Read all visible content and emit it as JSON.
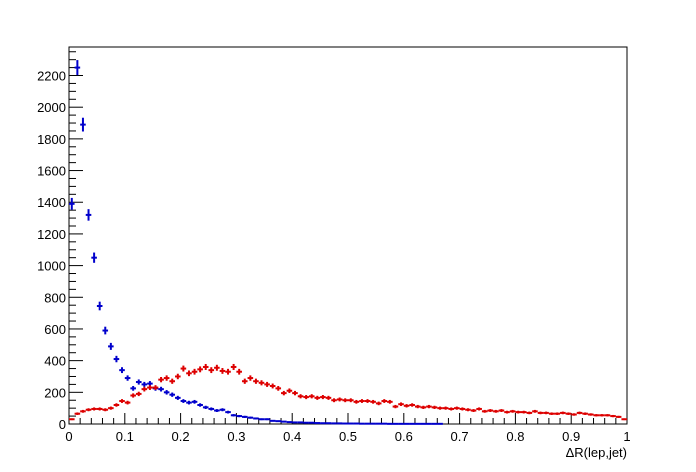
{
  "chart_data": {
    "type": "scatter",
    "title": "",
    "xlabel": "ΔR(lep,jet)",
    "ylabel": "",
    "xlim": [
      0,
      1
    ],
    "ylim": [
      0,
      2380
    ],
    "grid": false,
    "legend": "none",
    "x_ticks": [
      "0",
      "0.1",
      "0.2",
      "0.3",
      "0.4",
      "0.5",
      "0.6",
      "0.7",
      "0.8",
      "0.9",
      "1"
    ],
    "y_ticks": [
      "0",
      "200",
      "400",
      "600",
      "800",
      "1000",
      "1200",
      "1400",
      "1600",
      "1800",
      "2000",
      "2200"
    ],
    "bin_width": 0.01,
    "x": [
      0.005,
      0.015,
      0.025,
      0.035,
      0.045,
      0.055,
      0.065,
      0.075,
      0.085,
      0.095,
      0.105,
      0.115,
      0.125,
      0.135,
      0.145,
      0.155,
      0.165,
      0.175,
      0.185,
      0.195,
      0.205,
      0.215,
      0.225,
      0.235,
      0.245,
      0.255,
      0.265,
      0.275,
      0.285,
      0.295,
      0.305,
      0.315,
      0.325,
      0.335,
      0.345,
      0.355,
      0.365,
      0.375,
      0.385,
      0.395,
      0.405,
      0.415,
      0.425,
      0.435,
      0.445,
      0.455,
      0.465,
      0.475,
      0.485,
      0.495,
      0.505,
      0.515,
      0.525,
      0.535,
      0.545,
      0.555,
      0.565,
      0.575,
      0.585,
      0.595,
      0.605,
      0.615,
      0.625,
      0.635,
      0.645,
      0.655,
      0.665,
      0.675,
      0.685,
      0.695,
      0.705,
      0.715,
      0.725,
      0.735,
      0.745,
      0.755,
      0.765,
      0.775,
      0.785,
      0.795,
      0.805,
      0.815,
      0.825,
      0.835,
      0.845,
      0.855,
      0.865,
      0.875,
      0.885,
      0.895,
      0.905,
      0.915,
      0.925,
      0.935,
      0.945,
      0.955,
      0.965,
      0.975,
      0.985,
      0.995
    ],
    "series": [
      {
        "color": "#0000cc",
        "values": [
          1390,
          2250,
          1890,
          1320,
          1050,
          745,
          590,
          490,
          410,
          340,
          290,
          225,
          265,
          250,
          255,
          225,
          220,
          200,
          185,
          165,
          145,
          135,
          140,
          120,
          105,
          95,
          85,
          90,
          75,
          55,
          50,
          45,
          40,
          35,
          30,
          30,
          20,
          18,
          15,
          12,
          10,
          10,
          8,
          8,
          6,
          5,
          5,
          4,
          4,
          3,
          3,
          3,
          2,
          2,
          2,
          2,
          2,
          1,
          1,
          1,
          1,
          1,
          1,
          1,
          1,
          1,
          1,
          0,
          0,
          0,
          0,
          0,
          0,
          0,
          0,
          0,
          0,
          0,
          0,
          0,
          0,
          0,
          0,
          0,
          0,
          0,
          0,
          0,
          0,
          0,
          0,
          0,
          0,
          0,
          0,
          0,
          0,
          0,
          0,
          0
        ]
      },
      {
        "color": "#dd0000",
        "values": [
          30,
          65,
          80,
          90,
          95,
          95,
          90,
          100,
          120,
          145,
          135,
          180,
          190,
          220,
          230,
          230,
          280,
          290,
          270,
          300,
          350,
          320,
          330,
          345,
          360,
          340,
          355,
          335,
          330,
          360,
          330,
          270,
          290,
          270,
          260,
          250,
          240,
          225,
          195,
          210,
          195,
          175,
          170,
          175,
          165,
          170,
          165,
          150,
          155,
          150,
          150,
          140,
          145,
          145,
          140,
          130,
          145,
          140,
          110,
          125,
          115,
          120,
          110,
          105,
          110,
          105,
          100,
          100,
          95,
          100,
          95,
          90,
          85,
          95,
          80,
          85,
          80,
          85,
          75,
          80,
          75,
          75,
          70,
          80,
          70,
          70,
          65,
          65,
          70,
          65,
          60,
          70,
          65,
          60,
          55,
          55,
          55,
          50,
          45,
          30
        ]
      }
    ]
  }
}
